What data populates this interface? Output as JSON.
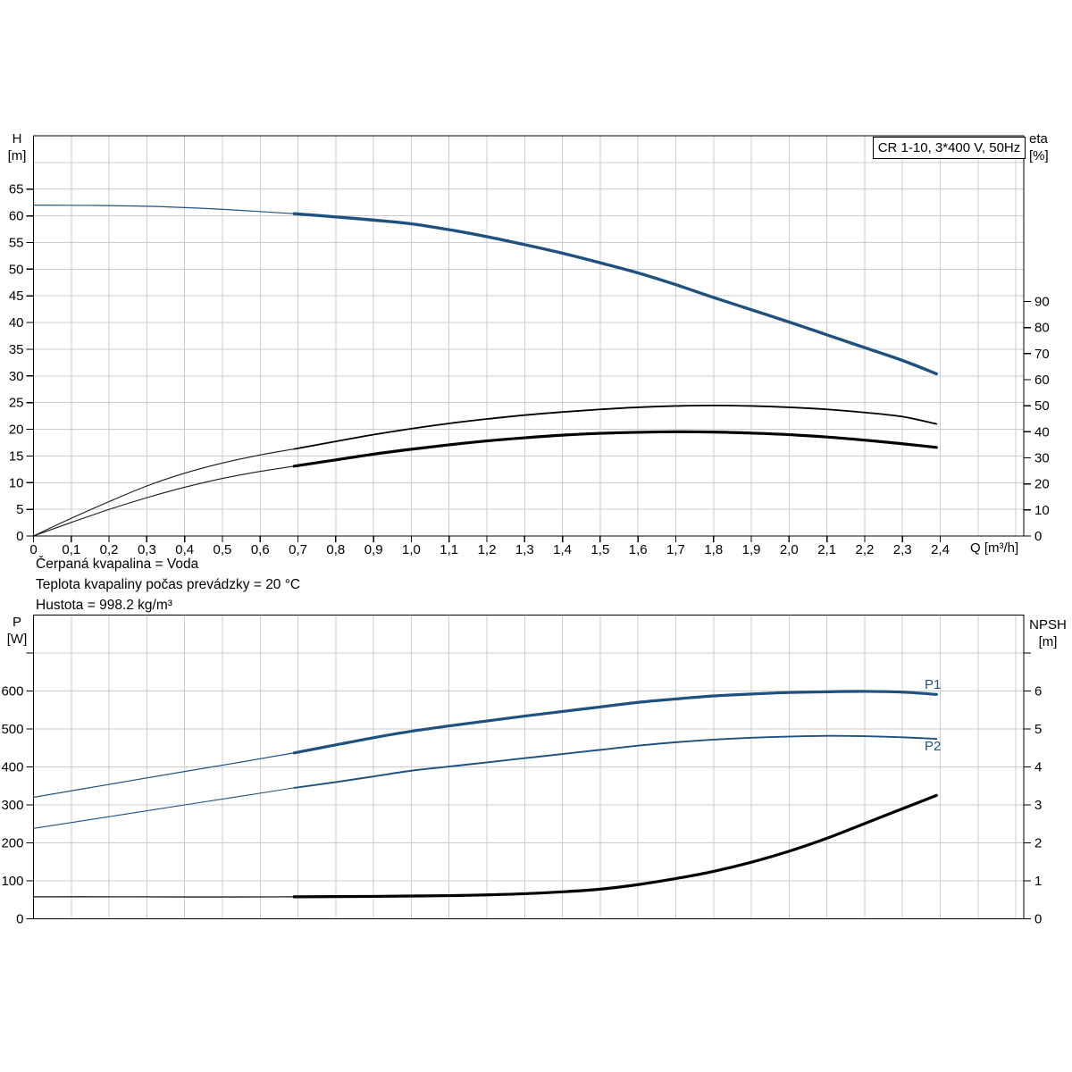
{
  "colors": {
    "curve_blue": "#1e5180",
    "curve_black": "#000000",
    "lead_black": "#1a1a1a",
    "grid": "#cccccc",
    "axis": "#000000",
    "text": "#000000"
  },
  "info_lines": [
    "Čerpaná kvapalina = Voda",
    "Teplota kvapaliny počas prevádzky = 20 °C",
    "Hustota = 998.2 kg/m³"
  ],
  "chart_data": [
    {
      "type": "line",
      "title": "CR 1-10, 3*400 V, 50Hz",
      "grid": true,
      "legend_position": "none",
      "x": {
        "label": "Q [m³/h]",
        "min": 0,
        "max": 2.621,
        "grid_values": [
          0.1,
          0.2,
          0.3,
          0.4,
          0.5,
          0.6,
          0.7,
          0.8,
          0.9,
          1.0,
          1.1,
          1.2,
          1.3,
          1.4,
          1.5,
          1.6,
          1.7,
          1.8,
          1.9,
          2.0,
          2.1,
          2.2,
          2.3,
          2.4,
          2.5,
          2.6
        ],
        "ticks": [
          0,
          0.1,
          0.2,
          0.3,
          0.4,
          0.5,
          0.6,
          0.7,
          0.8,
          0.9,
          1.0,
          1.1,
          1.2,
          1.3,
          1.4,
          1.5,
          1.6,
          1.7,
          1.8,
          1.9,
          2.0,
          2.1,
          2.2,
          2.3,
          2.4
        ],
        "tick_labels": [
          "0",
          "0,1",
          "0,2",
          "0,3",
          "0,4",
          "0,5",
          "0,6",
          "0,7",
          "0,8",
          "0,9",
          "1,0",
          "1,1",
          "1,2",
          "1,3",
          "1,4",
          "1,5",
          "1,6",
          "1,7",
          "1,8",
          "1,9",
          "2,0",
          "2,1",
          "2,2",
          "2,3",
          "2,4"
        ]
      },
      "y_left": {
        "label_lines": [
          "H",
          "[m]"
        ],
        "min": 0,
        "max": 75,
        "grid_values": [
          5,
          10,
          15,
          20,
          25,
          30,
          35,
          40,
          45,
          50,
          55,
          60,
          65,
          70
        ],
        "ticks": [
          0,
          5,
          10,
          15,
          20,
          25,
          30,
          35,
          40,
          45,
          50,
          55,
          60,
          65
        ],
        "tick_labels": [
          "0",
          "5",
          "10",
          "15",
          "20",
          "25",
          "30",
          "35",
          "40",
          "45",
          "50",
          "55",
          "60",
          "65"
        ]
      },
      "y_right": {
        "label_lines": [
          "eta",
          "[%]"
        ],
        "min": 0,
        "max": 153.6,
        "ticks": [
          0,
          10,
          20,
          30,
          40,
          50,
          60,
          70,
          80,
          90
        ],
        "tick_labels": [
          "0",
          "10",
          "20",
          "30",
          "40",
          "50",
          "60",
          "70",
          "80",
          "90"
        ]
      },
      "series": [
        {
          "name": "H-lead",
          "axis": "left",
          "color": "#1e5180",
          "width": 1.2,
          "points": [
            [
              0,
              62
            ],
            [
              0.15,
              61.95
            ],
            [
              0.3,
              61.8
            ],
            [
              0.45,
              61.4
            ],
            [
              0.6,
              60.8
            ],
            [
              0.69,
              60.4
            ]
          ]
        },
        {
          "name": "H",
          "axis": "left",
          "color": "#1e5180",
          "width": 3.4,
          "points": [
            [
              0.69,
              60.4
            ],
            [
              0.8,
              59.8
            ],
            [
              0.9,
              59.2
            ],
            [
              1.0,
              58.5
            ],
            [
              1.1,
              57.4
            ],
            [
              1.2,
              56.1
            ],
            [
              1.3,
              54.6
            ],
            [
              1.4,
              53.0
            ],
            [
              1.5,
              51.2
            ],
            [
              1.6,
              49.3
            ],
            [
              1.7,
              47.1
            ],
            [
              1.8,
              44.7
            ],
            [
              1.9,
              42.4
            ],
            [
              2.0,
              40.1
            ],
            [
              2.1,
              37.7
            ],
            [
              2.2,
              35.3
            ],
            [
              2.3,
              32.9
            ],
            [
              2.39,
              30.4
            ]
          ]
        },
        {
          "name": "eta-upper-lead",
          "axis": "right",
          "color": "#1a1a1a",
          "width": 1.1,
          "points": [
            [
              0,
              0
            ],
            [
              0.1,
              6.8
            ],
            [
              0.2,
              13.2
            ],
            [
              0.3,
              19.2
            ],
            [
              0.4,
              24.1
            ],
            [
              0.5,
              28.0
            ],
            [
              0.6,
              31.1
            ],
            [
              0.69,
              33.4
            ]
          ]
        },
        {
          "name": "eta-upper",
          "axis": "right",
          "color": "#000000",
          "width": 1.8,
          "points": [
            [
              0.69,
              33.4
            ],
            [
              0.8,
              36.3
            ],
            [
              0.9,
              38.9
            ],
            [
              1.0,
              41.2
            ],
            [
              1.1,
              43.2
            ],
            [
              1.2,
              44.9
            ],
            [
              1.3,
              46.4
            ],
            [
              1.4,
              47.6
            ],
            [
              1.5,
              48.6
            ],
            [
              1.6,
              49.4
            ],
            [
              1.7,
              49.9
            ],
            [
              1.8,
              50.1
            ],
            [
              1.9,
              49.9
            ],
            [
              2.0,
              49.4
            ],
            [
              2.1,
              48.6
            ],
            [
              2.2,
              47.4
            ],
            [
              2.3,
              45.8
            ],
            [
              2.39,
              43.0
            ]
          ]
        },
        {
          "name": "eta-lower-lead",
          "axis": "right",
          "color": "#1a1a1a",
          "width": 1.1,
          "points": [
            [
              0,
              0
            ],
            [
              0.1,
              5.2
            ],
            [
              0.2,
              10.2
            ],
            [
              0.3,
              14.7
            ],
            [
              0.4,
              18.7
            ],
            [
              0.5,
              22.1
            ],
            [
              0.6,
              24.8
            ],
            [
              0.69,
              26.8
            ]
          ]
        },
        {
          "name": "eta-lower",
          "axis": "right",
          "color": "#000000",
          "width": 3.2,
          "points": [
            [
              0.69,
              26.8
            ],
            [
              0.8,
              29.2
            ],
            [
              0.9,
              31.4
            ],
            [
              1.0,
              33.3
            ],
            [
              1.1,
              35.0
            ],
            [
              1.2,
              36.5
            ],
            [
              1.3,
              37.7
            ],
            [
              1.4,
              38.7
            ],
            [
              1.5,
              39.4
            ],
            [
              1.6,
              39.8
            ],
            [
              1.7,
              40.0
            ],
            [
              1.8,
              39.9
            ],
            [
              1.9,
              39.5
            ],
            [
              2.0,
              38.9
            ],
            [
              2.1,
              38.0
            ],
            [
              2.2,
              36.8
            ],
            [
              2.3,
              35.4
            ],
            [
              2.39,
              34.0
            ]
          ]
        }
      ]
    },
    {
      "type": "line",
      "title": "",
      "grid": true,
      "legend_position": "inline-right",
      "x": {
        "label": "",
        "min": 0,
        "max": 2.621,
        "grid_values": [
          0.1,
          0.2,
          0.3,
          0.4,
          0.5,
          0.6,
          0.7,
          0.8,
          0.9,
          1.0,
          1.1,
          1.2,
          1.3,
          1.4,
          1.5,
          1.6,
          1.7,
          1.8,
          1.9,
          2.0,
          2.1,
          2.2,
          2.3,
          2.4,
          2.5,
          2.6
        ],
        "ticks": [],
        "tick_labels": []
      },
      "y_left": {
        "label_lines": [
          "P",
          "[W]"
        ],
        "min": 0,
        "max": 800,
        "grid_values": [
          100,
          200,
          300,
          400,
          500,
          600,
          700
        ],
        "ticks": [
          0,
          100,
          200,
          300,
          400,
          500,
          600,
          700
        ],
        "tick_labels": [
          "0",
          "100",
          "200",
          "300",
          "400",
          "500",
          "600",
          ""
        ]
      },
      "y_right": {
        "label_lines": [
          "NPSH",
          "[m]"
        ],
        "min": 0,
        "max": 8,
        "ticks": [
          0,
          1,
          2,
          3,
          4,
          5,
          6,
          7
        ],
        "tick_labels": [
          "0",
          "1",
          "2",
          "3",
          "4",
          "5",
          "6",
          ""
        ]
      },
      "series": [
        {
          "name": "P1-lead",
          "axis": "left",
          "color": "#1e5180",
          "width": 1.2,
          "points": [
            [
              0,
              320
            ],
            [
              0.2,
              354
            ],
            [
              0.4,
              388
            ],
            [
              0.55,
              413
            ],
            [
              0.69,
              437
            ]
          ]
        },
        {
          "name": "P1",
          "axis": "left",
          "color": "#1e5180",
          "width": 3.2,
          "points": [
            [
              0.69,
              437
            ],
            [
              0.8,
              458
            ],
            [
              0.9,
              477
            ],
            [
              1.0,
              494
            ],
            [
              1.1,
              508
            ],
            [
              1.2,
              521
            ],
            [
              1.3,
              534
            ],
            [
              1.4,
              546
            ],
            [
              1.5,
              558
            ],
            [
              1.6,
              570
            ],
            [
              1.7,
              579
            ],
            [
              1.8,
              587
            ],
            [
              1.9,
              592
            ],
            [
              2.0,
              596
            ],
            [
              2.1,
              598
            ],
            [
              2.2,
              599
            ],
            [
              2.3,
              597
            ],
            [
              2.39,
              591
            ]
          ]
        },
        {
          "name": "P2-lead",
          "axis": "left",
          "color": "#1e5180",
          "width": 1.1,
          "points": [
            [
              0,
              238
            ],
            [
              0.2,
              269
            ],
            [
              0.4,
              300
            ],
            [
              0.55,
              323
            ],
            [
              0.69,
              345
            ]
          ]
        },
        {
          "name": "P2",
          "axis": "left",
          "color": "#1e5180",
          "width": 1.9,
          "points": [
            [
              0.69,
              345
            ],
            [
              0.8,
              360
            ],
            [
              0.9,
              375
            ],
            [
              1.0,
              390
            ],
            [
              1.1,
              401
            ],
            [
              1.2,
              412
            ],
            [
              1.3,
              423
            ],
            [
              1.4,
              434
            ],
            [
              1.5,
              445
            ],
            [
              1.6,
              456
            ],
            [
              1.7,
              465
            ],
            [
              1.8,
              472
            ],
            [
              1.9,
              477
            ],
            [
              2.0,
              480
            ],
            [
              2.1,
              482
            ],
            [
              2.2,
              481
            ],
            [
              2.3,
              478
            ],
            [
              2.39,
              474
            ]
          ]
        },
        {
          "name": "NPSH-lead",
          "axis": "right",
          "color": "#1a1a1a",
          "width": 1.3,
          "points": [
            [
              0,
              0.58
            ],
            [
              0.2,
              0.58
            ],
            [
              0.4,
              0.575
            ],
            [
              0.55,
              0.575
            ],
            [
              0.69,
              0.58
            ]
          ]
        },
        {
          "name": "NPSH",
          "axis": "right",
          "color": "#000000",
          "width": 3.2,
          "points": [
            [
              0.69,
              0.58
            ],
            [
              0.8,
              0.585
            ],
            [
              0.9,
              0.59
            ],
            [
              1.0,
              0.6
            ],
            [
              1.1,
              0.61
            ],
            [
              1.2,
              0.63
            ],
            [
              1.3,
              0.66
            ],
            [
              1.4,
              0.71
            ],
            [
              1.5,
              0.78
            ],
            [
              1.6,
              0.9
            ],
            [
              1.7,
              1.06
            ],
            [
              1.8,
              1.25
            ],
            [
              1.9,
              1.49
            ],
            [
              2.0,
              1.78
            ],
            [
              2.1,
              2.12
            ],
            [
              2.2,
              2.51
            ],
            [
              2.3,
              2.9
            ],
            [
              2.39,
              3.25
            ]
          ]
        }
      ]
    }
  ]
}
